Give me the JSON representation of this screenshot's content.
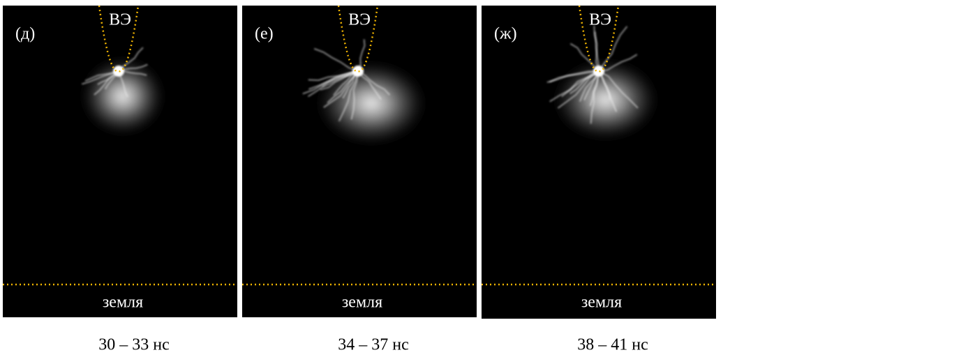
{
  "panels": [
    {
      "letter": "(д)",
      "electrode": "ВЭ",
      "ground": "земля",
      "caption": "30 – 33 нс"
    },
    {
      "letter": "(е)",
      "electrode": "ВЭ",
      "ground": "земля",
      "caption": "34 – 37 нс"
    },
    {
      "letter": "(ж)",
      "electrode": "ВЭ",
      "ground": "земля",
      "caption": "38 – 41 нс"
    }
  ]
}
